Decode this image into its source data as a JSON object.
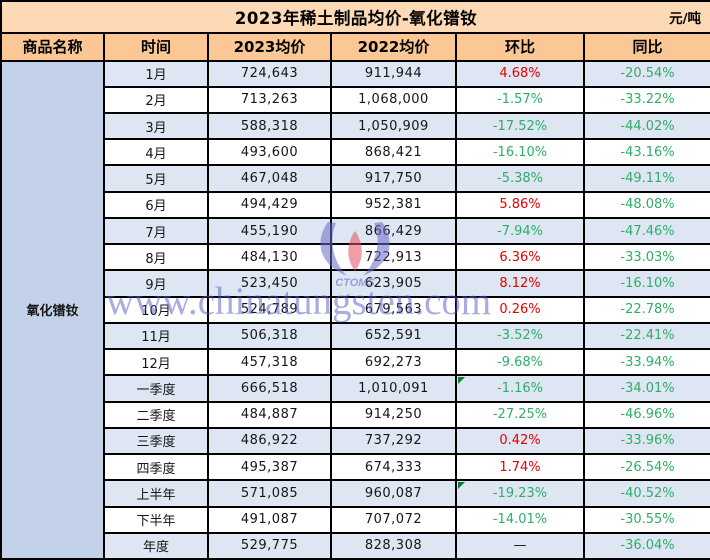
{
  "title": {
    "text": "2023年稀土制品均价-氧化镨钕",
    "unit": "元/吨"
  },
  "columns": [
    "商品名称",
    "时间",
    "2023均价",
    "2022均价",
    "环比",
    "同比"
  ],
  "product_name": "氧化镨钕",
  "watermark": {
    "text": "www.chinatungsten.com",
    "logo_text": "CTOMS"
  },
  "colors": {
    "title_bg": "#fdd9b6",
    "header_bg": "#fbc795",
    "product_bg": "#c3d2e9",
    "stripe_bg": "#dde6f2",
    "up_red": "#e60000",
    "down_green": "#2fae68",
    "flag_green": "#0a7d36",
    "watermark_blue": "#5459c8"
  },
  "chart_data": {
    "type": "table",
    "title": "2023年稀土制品均价-氧化镨钕",
    "unit": "元/吨",
    "product": "氧化镨钕",
    "columns": [
      "商品名称",
      "时间",
      "2023均价",
      "2022均价",
      "环比",
      "同比"
    ],
    "rows": [
      {
        "period": "1月",
        "avg_2023": "724,643",
        "avg_2022": "911,944",
        "mom": "4.68%",
        "mom_trend": "up",
        "yoy": "-20.54%",
        "yoy_trend": "down",
        "flag": false
      },
      {
        "period": "2月",
        "avg_2023": "713,263",
        "avg_2022": "1,068,000",
        "mom": "-1.57%",
        "mom_trend": "down",
        "yoy": "-33.22%",
        "yoy_trend": "down",
        "flag": false
      },
      {
        "period": "3月",
        "avg_2023": "588,318",
        "avg_2022": "1,050,909",
        "mom": "-17.52%",
        "mom_trend": "down",
        "yoy": "-44.02%",
        "yoy_trend": "down",
        "flag": false
      },
      {
        "period": "4月",
        "avg_2023": "493,600",
        "avg_2022": "868,421",
        "mom": "-16.10%",
        "mom_trend": "down",
        "yoy": "-43.16%",
        "yoy_trend": "down",
        "flag": false
      },
      {
        "period": "5月",
        "avg_2023": "467,048",
        "avg_2022": "917,750",
        "mom": "-5.38%",
        "mom_trend": "down",
        "yoy": "-49.11%",
        "yoy_trend": "down",
        "flag": false
      },
      {
        "period": "6月",
        "avg_2023": "494,429",
        "avg_2022": "952,381",
        "mom": "5.86%",
        "mom_trend": "up",
        "yoy": "-48.08%",
        "yoy_trend": "down",
        "flag": false
      },
      {
        "period": "7月",
        "avg_2023": "455,190",
        "avg_2022": "866,429",
        "mom": "-7.94%",
        "mom_trend": "down",
        "yoy": "-47.46%",
        "yoy_trend": "down",
        "flag": false
      },
      {
        "period": "8月",
        "avg_2023": "484,130",
        "avg_2022": "722,913",
        "mom": "6.36%",
        "mom_trend": "up",
        "yoy": "-33.03%",
        "yoy_trend": "down",
        "flag": false
      },
      {
        "period": "9月",
        "avg_2023": "523,450",
        "avg_2022": "623,905",
        "mom": "8.12%",
        "mom_trend": "up",
        "yoy": "-16.10%",
        "yoy_trend": "down",
        "flag": false
      },
      {
        "period": "10月",
        "avg_2023": "524,789",
        "avg_2022": "679,563",
        "mom": "0.26%",
        "mom_trend": "up",
        "yoy": "-22.78%",
        "yoy_trend": "down",
        "flag": false
      },
      {
        "period": "11月",
        "avg_2023": "506,318",
        "avg_2022": "652,591",
        "mom": "-3.52%",
        "mom_trend": "down",
        "yoy": "-22.41%",
        "yoy_trend": "down",
        "flag": false
      },
      {
        "period": "12月",
        "avg_2023": "457,318",
        "avg_2022": "692,273",
        "mom": "-9.68%",
        "mom_trend": "down",
        "yoy": "-33.94%",
        "yoy_trend": "down",
        "flag": false
      },
      {
        "period": "一季度",
        "avg_2023": "666,518",
        "avg_2022": "1,010,091",
        "mom": "-1.16%",
        "mom_trend": "down",
        "yoy": "-34.01%",
        "yoy_trend": "down",
        "flag": true
      },
      {
        "period": "二季度",
        "avg_2023": "484,887",
        "avg_2022": "914,250",
        "mom": "-27.25%",
        "mom_trend": "down",
        "yoy": "-46.96%",
        "yoy_trend": "down",
        "flag": false
      },
      {
        "period": "三季度",
        "avg_2023": "486,922",
        "avg_2022": "737,292",
        "mom": "0.42%",
        "mom_trend": "up",
        "yoy": "-33.96%",
        "yoy_trend": "down",
        "flag": false
      },
      {
        "period": "四季度",
        "avg_2023": "495,387",
        "avg_2022": "674,333",
        "mom": "1.74%",
        "mom_trend": "up",
        "yoy": "-26.54%",
        "yoy_trend": "down",
        "flag": false
      },
      {
        "period": "上半年",
        "avg_2023": "571,085",
        "avg_2022": "960,087",
        "mom": "-19.23%",
        "mom_trend": "down",
        "yoy": "-40.52%",
        "yoy_trend": "down",
        "flag": true
      },
      {
        "period": "下半年",
        "avg_2023": "491,087",
        "avg_2022": "707,072",
        "mom": "-14.01%",
        "mom_trend": "down",
        "yoy": "-30.55%",
        "yoy_trend": "down",
        "flag": false
      },
      {
        "period": "年度",
        "avg_2023": "529,775",
        "avg_2022": "828,308",
        "mom": "—",
        "mom_trend": "none",
        "yoy": "-36.04%",
        "yoy_trend": "down",
        "flag": false
      }
    ]
  }
}
